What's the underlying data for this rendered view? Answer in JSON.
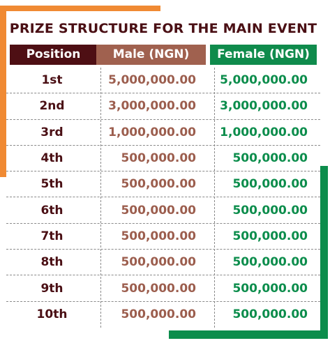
{
  "title": "PRIZE STRUCTURE FOR THE MAIN EVENT",
  "headers": {
    "position": "Position",
    "male": "Male (NGN)",
    "female": "Female (NGN)"
  },
  "rows": [
    {
      "position": "1st",
      "male": "5,000,000.00",
      "female": "5,000,000.00"
    },
    {
      "position": "2nd",
      "male": "3,000,000.00",
      "female": "3,000,000.00"
    },
    {
      "position": "3rd",
      "male": "1,000,000.00",
      "female": "1,000,000.00"
    },
    {
      "position": "4th",
      "male": "500,000.00",
      "female": "500,000.00"
    },
    {
      "position": "5th",
      "male": "500,000.00",
      "female": "500,000.00"
    },
    {
      "position": "6th",
      "male": "500,000.00",
      "female": "500,000.00"
    },
    {
      "position": "7th",
      "male": "500,000.00",
      "female": "500,000.00"
    },
    {
      "position": "8th",
      "male": "500,000.00",
      "female": "500,000.00"
    },
    {
      "position": "9th",
      "male": "500,000.00",
      "female": "500,000.00"
    },
    {
      "position": "10th",
      "male": "500,000.00",
      "female": "500,000.00"
    }
  ],
  "colors": {
    "accent_orange": "#f08a33",
    "accent_green": "#0c8d4c",
    "position_dark": "#4e0f14",
    "male_brown": "#a0614f"
  }
}
